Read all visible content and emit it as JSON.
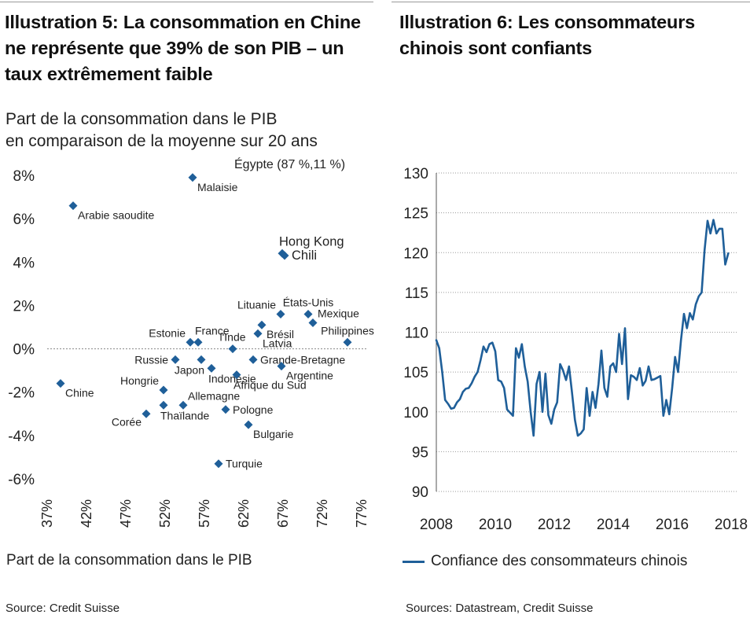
{
  "left": {
    "title": "Illustration 5: La consommation en Chine ne représente que 39% de son PIB – un taux extrêmement faible",
    "subtitle_line1": "Part de la consommation dans le PIB",
    "subtitle_line2": "en comparaison de la moyenne sur 20 ans",
    "x_caption": "Part de la consommation dans le PIB",
    "source": "Source: Credit Suisse"
  },
  "right": {
    "title": "Illustration 6: Les consommateurs chinois sont confiants",
    "legend_label": "Confiance des consommateurs chinois",
    "source": "Sources: Datastream, Credit Suisse"
  },
  "chart_data": [
    {
      "type": "scatter",
      "title": "Illustration 5: La consommation en Chine ne représente que 39% de son PIB – un taux extrêmement faible",
      "subtitle": "Part de la consommation dans le PIB en comparaison de la moyenne sur 20 ans",
      "xlabel": "Part de la consommation dans le PIB",
      "ylabel": "",
      "xlim": [
        37,
        77
      ],
      "ylim": [
        -6,
        8
      ],
      "x_ticks": [
        37,
        42,
        47,
        52,
        57,
        62,
        67,
        72,
        77
      ],
      "x_tick_labels": [
        "37%",
        "42%",
        "47%",
        "52%",
        "57%",
        "62%",
        "67%",
        "72%",
        "77%"
      ],
      "y_ticks": [
        8,
        6,
        4,
        2,
        0,
        -2,
        -4,
        -6
      ],
      "y_tick_labels": [
        "8%",
        "6%",
        "4%",
        "2%",
        "0%",
        "-2%",
        "-4%",
        "-6%"
      ],
      "color": "#1f5f99",
      "annotation": "Égypte (87 %,11 %)",
      "points": [
        {
          "label": "Malaisie",
          "x": 55.5,
          "y": 7.9,
          "label_pos": "right-below"
        },
        {
          "label": "Arabie saoudite",
          "x": 40.3,
          "y": 6.6,
          "label_pos": "right-below"
        },
        {
          "label": "Hong Kong",
          "x": 66.9,
          "y": 4.4,
          "label_pos": "above-right"
        },
        {
          "label": "Chili",
          "x": 67.2,
          "y": 4.3,
          "label_pos": "right"
        },
        {
          "label": "Lituanie",
          "x": 66.7,
          "y": 1.6,
          "label_pos": "left-above"
        },
        {
          "label": "États-Unis",
          "x": 70.2,
          "y": 1.6,
          "label_pos": "above"
        },
        {
          "label": "Mexique",
          "x": 70.8,
          "y": 1.2,
          "label_pos": "right-above"
        },
        {
          "label": "Brésil",
          "x": 64.3,
          "y": 1.1,
          "label_pos": "right-below"
        },
        {
          "label": "Latvia",
          "x": 63.8,
          "y": 0.7,
          "label_pos": "right-below"
        },
        {
          "label": "Philippines",
          "x": 75.2,
          "y": 0.3,
          "label_pos": "above"
        },
        {
          "label": "Estonie",
          "x": 55.2,
          "y": 0.3,
          "label_pos": "left-above"
        },
        {
          "label": "France",
          "x": 56.2,
          "y": 0.3,
          "label_pos": "above-right"
        },
        {
          "label": "l'Inde",
          "x": 60.6,
          "y": 0.0,
          "label_pos": "above"
        },
        {
          "label": "Grande-Bretagne",
          "x": 63.2,
          "y": -0.5,
          "label_pos": "right"
        },
        {
          "label": "Argentine",
          "x": 66.8,
          "y": -0.8,
          "label_pos": "right-below"
        },
        {
          "label": "Russie",
          "x": 53.3,
          "y": -0.5,
          "label_pos": "left"
        },
        {
          "label": "Japon",
          "x": 56.6,
          "y": -0.5,
          "label_pos": "below-left"
        },
        {
          "label": "Indonésie",
          "x": 57.9,
          "y": -0.9,
          "label_pos": "below-right"
        },
        {
          "label": "Afrique du Sud",
          "x": 61.1,
          "y": -1.2,
          "label_pos": "below-right"
        },
        {
          "label": "Chine",
          "x": 38.7,
          "y": -1.6,
          "label_pos": "right-below"
        },
        {
          "label": "Hongrie",
          "x": 51.8,
          "y": -1.9,
          "label_pos": "left-above"
        },
        {
          "label": "Allemagne",
          "x": 54.3,
          "y": -2.6,
          "label_pos": "right-above"
        },
        {
          "label": "Thaïlande",
          "x": 51.8,
          "y": -2.6,
          "label_pos": "below-right"
        },
        {
          "label": "Corée",
          "x": 49.6,
          "y": -3.0,
          "label_pos": "left-below"
        },
        {
          "label": "Pologne",
          "x": 59.7,
          "y": -2.8,
          "label_pos": "right"
        },
        {
          "label": "Bulgarie",
          "x": 62.6,
          "y": -3.5,
          "label_pos": "right-below"
        },
        {
          "label": "Turquie",
          "x": 58.8,
          "y": -5.3,
          "label_pos": "right"
        }
      ]
    },
    {
      "type": "line",
      "title": "Illustration 6: Les consommateurs chinois sont confiants",
      "xlabel": "",
      "ylabel": "",
      "xlim": [
        2008,
        2018
      ],
      "ylim": [
        90,
        130
      ],
      "x_ticks": [
        2008,
        2010,
        2012,
        2014,
        2016,
        2018
      ],
      "y_ticks": [
        90,
        95,
        100,
        105,
        110,
        115,
        120,
        125,
        130
      ],
      "legend": "bottom-left",
      "series": [
        {
          "name": "Confiance des consommateurs chinois",
          "color": "#1f5f99",
          "x": [
            2008.0,
            2008.1,
            2008.2,
            2008.3,
            2008.4,
            2008.5,
            2008.6,
            2008.7,
            2008.8,
            2008.9,
            2009.0,
            2009.1,
            2009.2,
            2009.3,
            2009.4,
            2009.5,
            2009.6,
            2009.7,
            2009.8,
            2009.9,
            2010.0,
            2010.1,
            2010.2,
            2010.3,
            2010.4,
            2010.5,
            2010.6,
            2010.7,
            2010.8,
            2010.9,
            2011.0,
            2011.1,
            2011.2,
            2011.3,
            2011.4,
            2011.5,
            2011.6,
            2011.7,
            2011.8,
            2011.9,
            2012.0,
            2012.1,
            2012.2,
            2012.3,
            2012.4,
            2012.5,
            2012.6,
            2012.7,
            2012.8,
            2012.9,
            2013.0,
            2013.1,
            2013.2,
            2013.3,
            2013.4,
            2013.5,
            2013.6,
            2013.7,
            2013.8,
            2013.9,
            2014.0,
            2014.1,
            2014.2,
            2014.3,
            2014.4,
            2014.5,
            2014.6,
            2014.7,
            2014.8,
            2014.9,
            2015.0,
            2015.1,
            2015.2,
            2015.3,
            2015.4,
            2015.5,
            2015.6,
            2015.7,
            2015.8,
            2015.9,
            2016.0,
            2016.1,
            2016.2,
            2016.3,
            2016.4,
            2016.5,
            2016.6,
            2016.7,
            2016.8,
            2016.9,
            2017.0,
            2017.1,
            2017.2,
            2017.3,
            2017.4,
            2017.5,
            2017.6,
            2017.7,
            2017.8,
            2017.9
          ],
          "values": [
            109,
            108,
            105,
            101.5,
            101,
            100.4,
            100.5,
            101.2,
            101.6,
            102.5,
            102.9,
            103,
            103.6,
            104.4,
            105,
            106.5,
            108.2,
            107.5,
            108.5,
            108.7,
            107.6,
            104,
            103.8,
            103,
            100.3,
            99.9,
            99.5,
            108,
            106.8,
            108.5,
            105.7,
            103.8,
            100,
            97,
            103.5,
            105,
            100,
            104.8,
            99.6,
            98.5,
            100.3,
            101.2,
            106,
            105.2,
            104,
            105.7,
            102.5,
            99,
            97,
            97.3,
            97.8,
            103,
            99.5,
            102.5,
            100.5,
            103.5,
            107.7,
            103,
            101.9,
            105.7,
            106.1,
            105,
            109.8,
            106,
            110.5,
            101.6,
            104.6,
            104.4,
            104,
            105.5,
            103.3,
            103.9,
            105.7,
            104,
            104.1,
            104.3,
            104.5,
            99.5,
            101.5,
            99.7,
            103,
            106.9,
            105,
            109,
            112.3,
            110.5,
            112.4,
            111.6,
            113.5,
            114.5,
            115,
            120.3,
            124,
            122.4,
            124.1,
            122.4,
            123,
            123,
            118.5,
            119.9
          ]
        }
      ]
    }
  ]
}
